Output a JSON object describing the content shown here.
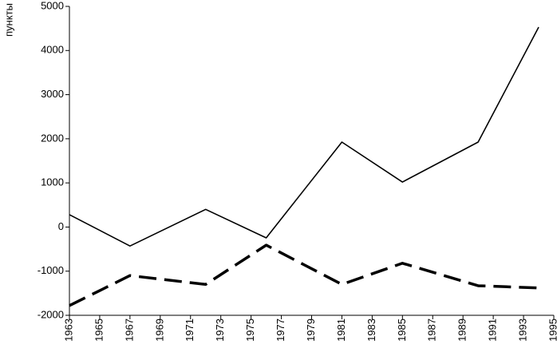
{
  "chart_data": {
    "type": "line",
    "y_label": "пункты",
    "x": [
      1963,
      1967,
      1972,
      1976,
      1981,
      1985,
      1990,
      1994
    ],
    "series": [
      {
        "color": "#000000",
        "style": "solid",
        "values": [
          280,
          -430,
          400,
          -245,
          1925,
          1020,
          1925,
          4530
        ]
      },
      {
        "color": "#000000",
        "style": "dashed",
        "values": [
          -1780,
          -1100,
          -1300,
          -410,
          -1300,
          -820,
          -1330,
          -1380
        ]
      }
    ],
    "xlim": [
      1963,
      1995
    ],
    "xticks": [
      1963,
      1965,
      1967,
      1969,
      1971,
      1973,
      1975,
      1977,
      1979,
      1981,
      1983,
      1985,
      1987,
      1989,
      1991,
      1993,
      1995
    ],
    "ylim": [
      -2000,
      5000
    ],
    "yticks": [
      -2000,
      -1000,
      0,
      1000,
      2000,
      3000,
      4000,
      5000
    ],
    "grid": false
  }
}
